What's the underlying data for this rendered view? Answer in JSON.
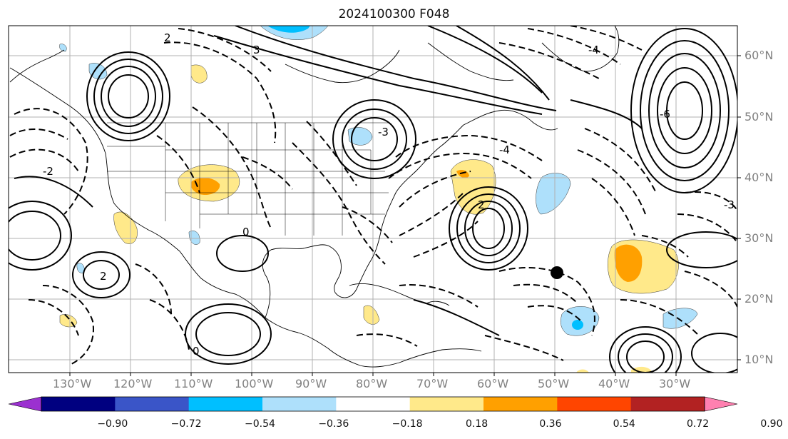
{
  "title": "2024100300 F048",
  "lon_labels": [
    "130°W",
    "120°W",
    "110°W",
    "100°W",
    "90°W",
    "80°W",
    "70°W",
    "60°W",
    "50°W",
    "40°W",
    "30°W"
  ],
  "lat_labels": [
    "60°N",
    "50°N",
    "40°N",
    "30°N",
    "20°N",
    "10°N"
  ],
  "colorbar": {
    "tick_labels": [
      "−0.90",
      "−0.72",
      "−0.54",
      "−0.36",
      "−0.18",
      "0.18",
      "0.36",
      "0.54",
      "0.72",
      "0.90"
    ],
    "colors": {
      "under": "#9b30d0",
      "bins": [
        "#000080",
        "#3a55c8",
        "#00bfff",
        "#aee0fb",
        "#ffffff",
        "#ffe98a",
        "#ffa000",
        "#ff4500",
        "#b22222"
      ],
      "over": "#ff80b0"
    }
  },
  "contour_labels": [
    "2",
    "3",
    "-4",
    "-6",
    "-2",
    "0",
    "2",
    "-3",
    "-4",
    "0",
    "2",
    "-3"
  ],
  "marker": {
    "color": "#000000"
  }
}
